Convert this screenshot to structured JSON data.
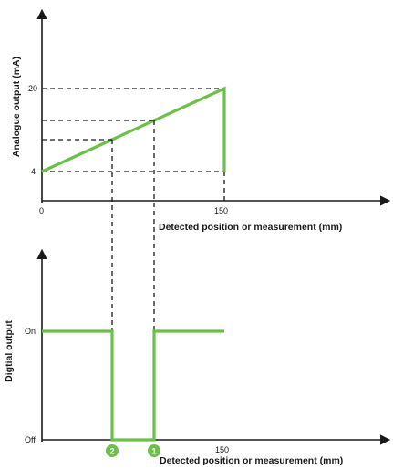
{
  "top_chart": {
    "y_axis_label": "Analogue output (mA)",
    "x_axis_label": "Detected position or measurement (mm)",
    "y_ticks": [
      "20",
      "4"
    ],
    "x_ticks": [
      "0",
      "150"
    ],
    "series_color": "#6cc04a"
  },
  "bottom_chart": {
    "y_axis_label": "Digtial output",
    "x_axis_label": "Detected position or measurement (mm)",
    "y_ticks": [
      "On",
      "Off"
    ],
    "x_ticks": [
      "150"
    ],
    "markers": [
      "2",
      "1"
    ],
    "series_color": "#6cc04a"
  }
}
